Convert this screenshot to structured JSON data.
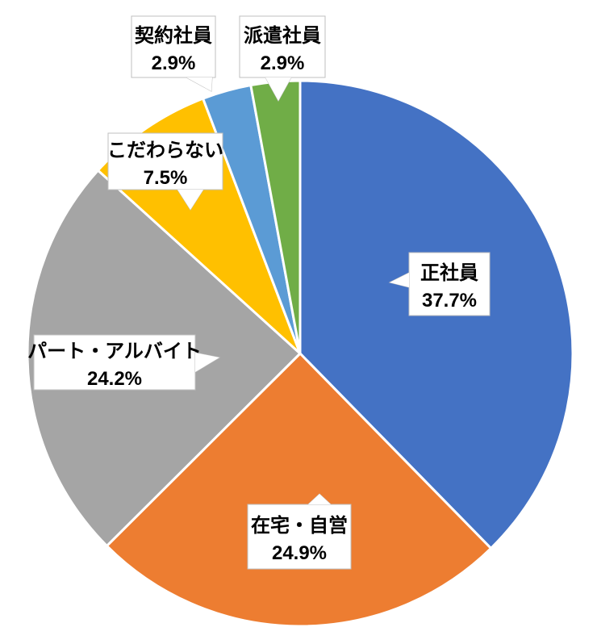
{
  "chart_data": {
    "type": "pie",
    "title": "",
    "legend": "none",
    "start_angle_deg": 0,
    "direction": "clockwise",
    "slices": [
      {
        "name": "正社員",
        "value": 37.7,
        "label": "37.7%",
        "color": "#4472C4"
      },
      {
        "name": "在宅・自営",
        "value": 24.9,
        "label": "24.9%",
        "color": "#ED7D31"
      },
      {
        "name": "パート・アルバイト",
        "value": 24.2,
        "label": "24.2%",
        "color": "#A5A5A5"
      },
      {
        "name": "こだわらない",
        "value": 7.5,
        "label": "7.5%",
        "color": "#FFC000"
      },
      {
        "name": "契約社員",
        "value": 2.9,
        "label": "2.9%",
        "color": "#5B9BD5"
      },
      {
        "name": "派遣社員",
        "value": 2.9,
        "label": "2.9%",
        "color": "#70AD47"
      }
    ]
  }
}
